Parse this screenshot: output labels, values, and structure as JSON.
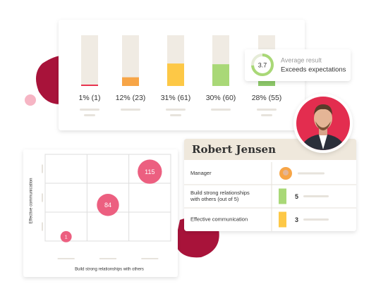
{
  "bar_chart": {
    "type": "bar",
    "values": [
      1,
      12,
      31,
      30,
      28
    ],
    "value_labels": [
      "1% (1)",
      "12% (23)",
      "31% (61)",
      "30% (60)",
      "28% (55)"
    ],
    "colors": [
      "#e8344e",
      "#f7a547",
      "#fdc846",
      "#a9d877",
      "#8dc96a"
    ],
    "ylim": [
      0,
      70
    ]
  },
  "badge": {
    "value": 3.7,
    "range": [
      0,
      5
    ],
    "title": "Average result",
    "subtitle": "Exceeds expectations"
  },
  "profile": {
    "name": "Robert Jensen",
    "rows": [
      {
        "label": "Manager"
      },
      {
        "label": "Build strong relationships with others (out of 5)",
        "value": 5,
        "color": "#a9d877"
      },
      {
        "label": "Effective communication",
        "value": 3,
        "color": "#fdc846"
      }
    ]
  },
  "bubble_chart": {
    "type": "scatter",
    "x_label": "Build strong relationships with others",
    "y_label": "Effective communication",
    "x": [
      0.5,
      1.5,
      2.5
    ],
    "y": [
      0.15,
      1.25,
      2.4
    ],
    "sizes": [
      1,
      84,
      115
    ],
    "xlim": [
      0,
      3
    ],
    "ylim": [
      0,
      3
    ],
    "color": "#ec5f80"
  }
}
